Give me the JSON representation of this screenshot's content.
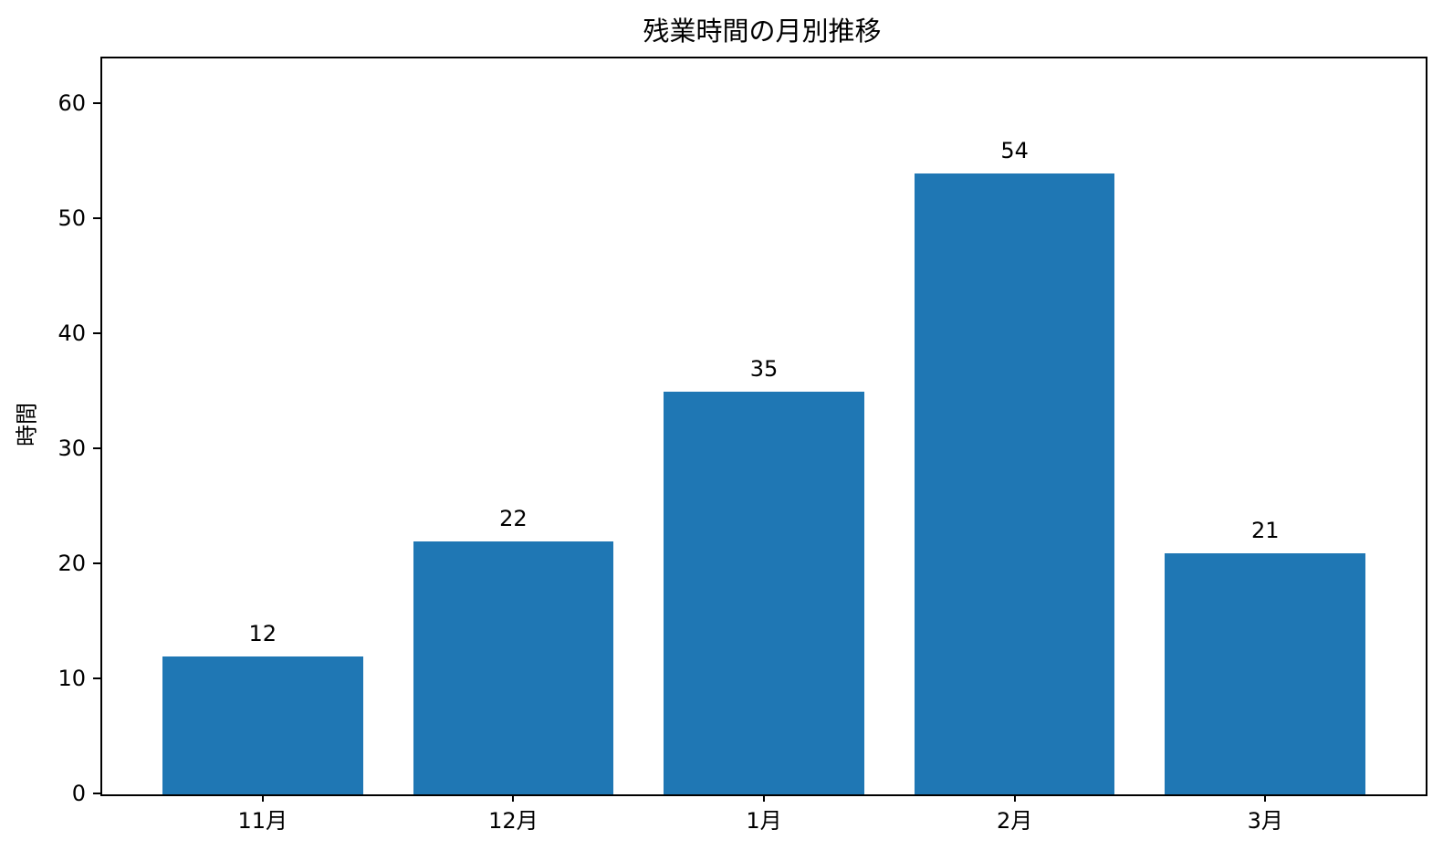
{
  "chart_data": {
    "type": "bar",
    "title": "残業時間の月別推移",
    "ylabel": "時間",
    "xlabel": "",
    "categories": [
      "11月",
      "12月",
      "1月",
      "2月",
      "3月"
    ],
    "values": [
      12,
      22,
      35,
      54,
      21
    ],
    "value_labels": [
      "12",
      "22",
      "35",
      "54",
      "21"
    ],
    "yticks": [
      0,
      10,
      20,
      30,
      40,
      50,
      60
    ],
    "ylim": [
      0,
      64
    ],
    "grid": false,
    "legend": "none",
    "bar_color": "#1f77b4",
    "text_color": "#000000",
    "background_color": "#ffffff"
  }
}
